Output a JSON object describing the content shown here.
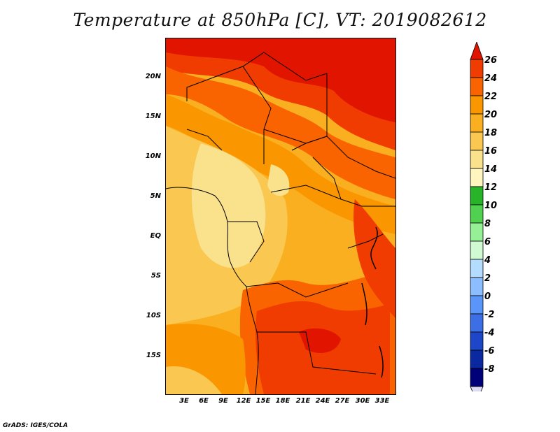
{
  "title": "Temperature at 850hPa [C], VT: 2019082612",
  "credit": "GrADS: IGES/COLA",
  "lat_labels": [
    "20N",
    "15N",
    "10N",
    "5N",
    "EQ",
    "5S",
    "10S",
    "15S"
  ],
  "lon_labels": [
    "3E",
    "6E",
    "9E",
    "12E",
    "15E",
    "18E",
    "21E",
    "24E",
    "27E",
    "30E",
    "33E"
  ],
  "colorbar": {
    "labels": [
      "26",
      "24",
      "22",
      "20",
      "18",
      "16",
      "14",
      "12",
      "10",
      "8",
      "6",
      "4",
      "2",
      "0",
      "-2",
      "-4",
      "-6",
      "-8"
    ],
    "colors": [
      "#e11400",
      "#f03c00",
      "#fa6400",
      "#fa9600",
      "#faaf20",
      "#fac850",
      "#fae18c",
      "#fff5be",
      "#28b428",
      "#50d250",
      "#96f096",
      "#d2fad2",
      "#b4dcff",
      "#8cbeff",
      "#5a96fa",
      "#3c6ee6",
      "#1e46c8",
      "#0a28a0",
      "#000078"
    ],
    "top_cap": "#e11400",
    "bottom_cap": "#dcdcf5"
  }
}
